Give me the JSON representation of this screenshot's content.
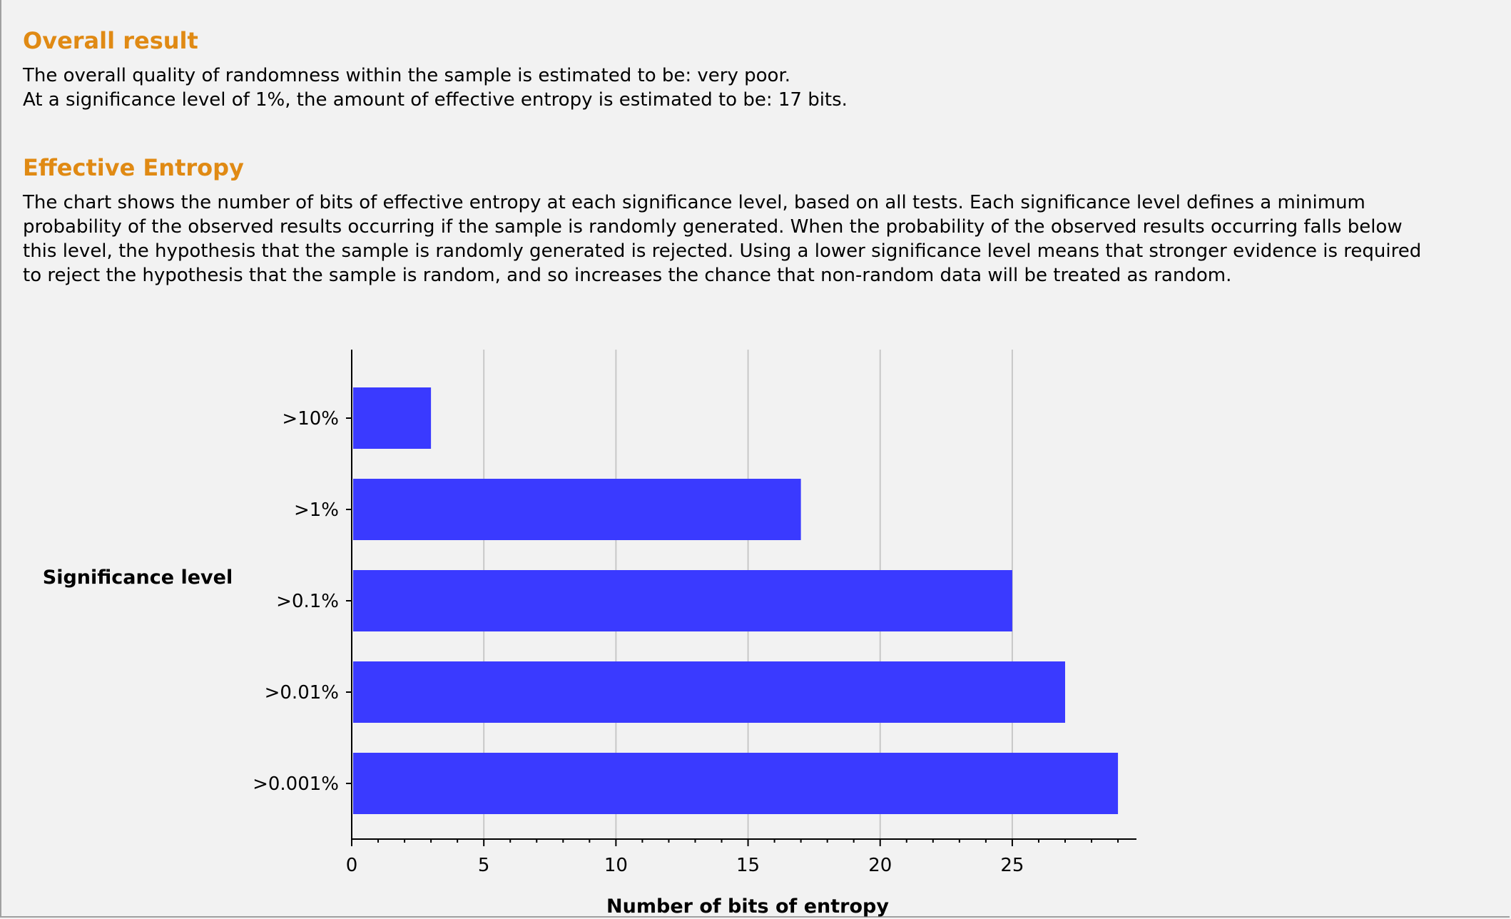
{
  "overall": {
    "title": "Overall result",
    "lines": [
      "The overall quality of randomness within the sample is estimated to be: very poor.",
      "At a significance level of 1%, the amount of effective entropy is estimated to be: 17 bits."
    ]
  },
  "effective": {
    "title": "Effective Entropy",
    "lines": [
      "The chart shows the number of bits of effective entropy at each significance level, based on all tests. Each significance level defines a minimum",
      "probability of the observed results occurring if the sample is randomly generated. When the probability of the observed results occurring falls below",
      "this level, the hypothesis that the sample is randomly generated is rejected. Using a lower significance level means that stronger evidence is required",
      "to reject the hypothesis that the sample is random, and so increases the chance that non-random data will be treated as random."
    ]
  },
  "colors": {
    "heading": "#e08a14",
    "bar": "#3a3aff",
    "grid": "#c8c8c8"
  },
  "chart_data": {
    "type": "bar",
    "orientation": "horizontal",
    "categories": [
      ">10%",
      ">1%",
      ">0.1%",
      ">0.01%",
      ">0.001%"
    ],
    "values": [
      3,
      17,
      25,
      27,
      29
    ],
    "xlabel": "Number of bits of entropy",
    "ylabel": "Significance level",
    "xlim": [
      0,
      29.7
    ],
    "xticks": [
      0,
      5,
      10,
      15,
      20,
      25
    ],
    "grid": true,
    "legend": "none"
  }
}
